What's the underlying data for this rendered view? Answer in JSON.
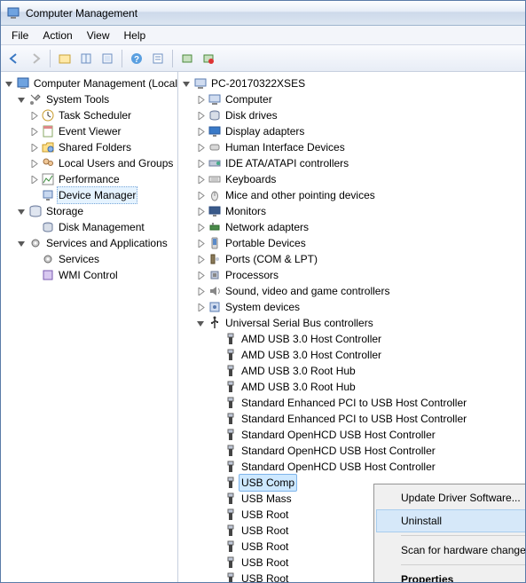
{
  "window": {
    "title": "Computer Management"
  },
  "menus": {
    "file": "File",
    "action": "Action",
    "view": "View",
    "help": "Help"
  },
  "colors": {
    "titlebar_start": "#fdfeff",
    "titlebar_end": "#dbe5f1",
    "selection": "#cde8ff",
    "ctx_hover": "#d6e8f9"
  },
  "left_tree": {
    "root": "Computer Management (Local",
    "groups": [
      {
        "label": "System Tools",
        "expanded": true,
        "items": [
          {
            "label": "Task Scheduler",
            "icon": "clock"
          },
          {
            "label": "Event Viewer",
            "icon": "event"
          },
          {
            "label": "Shared Folders",
            "icon": "folder"
          },
          {
            "label": "Local Users and Groups",
            "icon": "users"
          },
          {
            "label": "Performance",
            "icon": "perf"
          },
          {
            "label": "Device Manager",
            "icon": "device",
            "selected": true
          }
        ]
      },
      {
        "label": "Storage",
        "expanded": true,
        "items": [
          {
            "label": "Disk Management",
            "icon": "disk"
          }
        ]
      },
      {
        "label": "Services and Applications",
        "expanded": true,
        "items": [
          {
            "label": "Services",
            "icon": "gear"
          },
          {
            "label": "WMI Control",
            "icon": "wmi"
          }
        ]
      }
    ]
  },
  "right_tree": {
    "root": "PC-20170322XSES",
    "categories": [
      {
        "label": "Computer",
        "icon": "computer"
      },
      {
        "label": "Disk drives",
        "icon": "disk"
      },
      {
        "label": "Display adapters",
        "icon": "display"
      },
      {
        "label": "Human Interface Devices",
        "icon": "hid"
      },
      {
        "label": "IDE ATA/ATAPI controllers",
        "icon": "ide"
      },
      {
        "label": "Keyboards",
        "icon": "keyboard"
      },
      {
        "label": "Mice and other pointing devices",
        "icon": "mouse"
      },
      {
        "label": "Monitors",
        "icon": "monitor"
      },
      {
        "label": "Network adapters",
        "icon": "network"
      },
      {
        "label": "Portable Devices",
        "icon": "portable"
      },
      {
        "label": "Ports (COM & LPT)",
        "icon": "port"
      },
      {
        "label": "Processors",
        "icon": "cpu"
      },
      {
        "label": "Sound, video and game controllers",
        "icon": "sound"
      },
      {
        "label": "System devices",
        "icon": "system"
      },
      {
        "label": "Universal Serial Bus controllers",
        "icon": "usb",
        "expanded": true,
        "children": [
          "AMD USB 3.0 Host Controller",
          "AMD USB 3.0 Host Controller",
          "AMD USB 3.0 Root Hub",
          "AMD USB 3.0 Root Hub",
          "Standard Enhanced PCI to USB Host Controller",
          "Standard Enhanced PCI to USB Host Controller",
          "Standard OpenHCD USB Host Controller",
          "Standard OpenHCD USB Host Controller",
          "Standard OpenHCD USB Host Controller",
          "USB Comp",
          "USB Mass ",
          "USB Root ",
          "USB Root ",
          "USB Root ",
          "USB Root ",
          "USB Root "
        ],
        "highlighted_index": 9
      }
    ]
  },
  "context_menu": {
    "items": [
      {
        "label": "Update Driver Software...",
        "type": "item"
      },
      {
        "label": "Uninstall",
        "type": "item",
        "hover": true
      },
      {
        "type": "sep"
      },
      {
        "label": "Scan for hardware changes",
        "type": "item"
      },
      {
        "type": "sep"
      },
      {
        "label": "Properties",
        "type": "item",
        "bold": true
      }
    ]
  }
}
